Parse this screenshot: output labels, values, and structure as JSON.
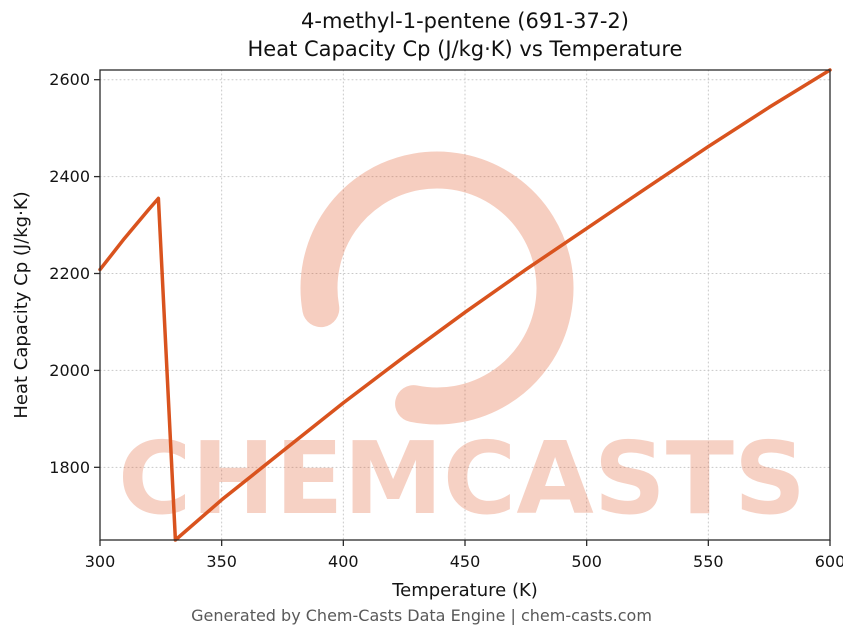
{
  "title": {
    "line1": "4-methyl-1-pentene (691-37-2)",
    "line2": "Heat Capacity Cp (J/kg·K) vs Temperature"
  },
  "footer": "Generated by Chem-Casts Data Engine | chem-casts.com",
  "watermark": {
    "text": "CHEMCASTS",
    "color": "#e05c30"
  },
  "chart_data": {
    "type": "line",
    "title": "4-methyl-1-pentene (691-37-2) — Heat Capacity Cp (J/kg·K) vs Temperature",
    "xlabel": "Temperature (K)",
    "ylabel": "Heat Capacity Cp (J/kg·K)",
    "xlim": [
      300,
      600
    ],
    "ylim": [
      1650,
      2620
    ],
    "xticks": [
      300,
      350,
      400,
      450,
      500,
      550,
      600
    ],
    "yticks": [
      1800,
      2000,
      2200,
      2400,
      2600
    ],
    "grid": true,
    "legend": false,
    "line_color": "#d9531e",
    "x": [
      300,
      310,
      320,
      324,
      331,
      350,
      375,
      400,
      425,
      450,
      475,
      500,
      525,
      550,
      575,
      600
    ],
    "series": [
      {
        "name": "Heat Capacity Cp",
        "values": [
          2208,
          2272,
          2332,
          2355,
          1650,
          1733,
          1833,
          1933,
          2028,
          2120,
          2208,
          2293,
          2378,
          2462,
          2543,
          2620
        ]
      }
    ]
  }
}
